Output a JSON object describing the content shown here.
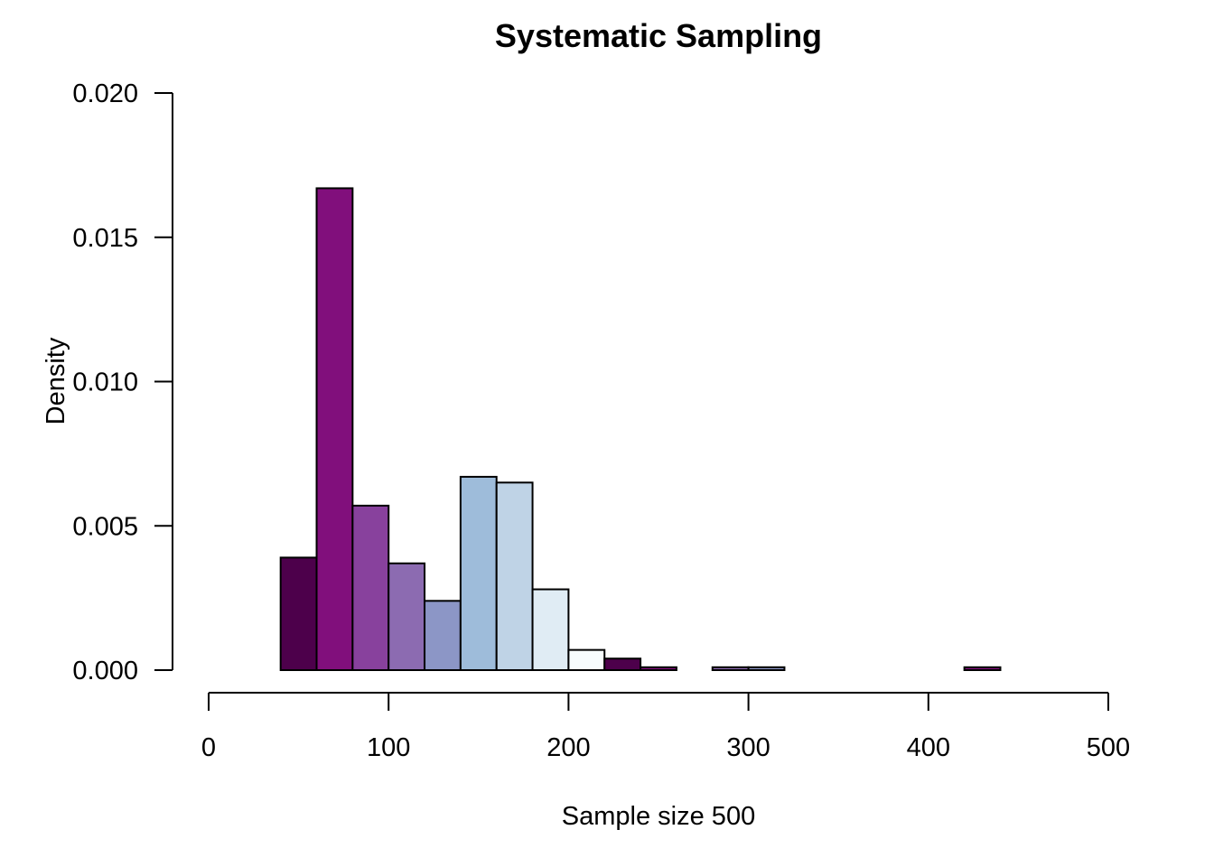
{
  "chart_data": {
    "type": "bar",
    "title": "Systematic Sampling",
    "xlabel": "Sample size 500",
    "ylabel": "Density",
    "xlim": [
      0,
      500
    ],
    "ylim": [
      0,
      0.02
    ],
    "x_ticks": [
      "0",
      "100",
      "200",
      "300",
      "400",
      "500"
    ],
    "x_tick_values": [
      0,
      100,
      200,
      300,
      400,
      500
    ],
    "y_ticks": [
      "0.000",
      "0.005",
      "0.010",
      "0.015",
      "0.020"
    ],
    "y_tick_values": [
      0,
      0.005,
      0.01,
      0.015,
      0.02
    ],
    "grid": false,
    "bins": [
      {
        "x0": 40,
        "x1": 60,
        "value": 0.0039,
        "color": "#4d004b"
      },
      {
        "x0": 60,
        "x1": 80,
        "value": 0.0167,
        "color": "#810f7c"
      },
      {
        "x0": 80,
        "x1": 100,
        "value": 0.0057,
        "color": "#88419d"
      },
      {
        "x0": 100,
        "x1": 120,
        "value": 0.0037,
        "color": "#8c6bb1"
      },
      {
        "x0": 120,
        "x1": 140,
        "value": 0.0024,
        "color": "#8c96c6"
      },
      {
        "x0": 140,
        "x1": 160,
        "value": 0.0067,
        "color": "#9ebcda"
      },
      {
        "x0": 160,
        "x1": 180,
        "value": 0.0065,
        "color": "#bfd3e6"
      },
      {
        "x0": 180,
        "x1": 200,
        "value": 0.0028,
        "color": "#e0ecf4"
      },
      {
        "x0": 200,
        "x1": 220,
        "value": 0.0007,
        "color": "#f7fcfd"
      },
      {
        "x0": 220,
        "x1": 240,
        "value": 0.0004,
        "color": "#4d004b"
      },
      {
        "x0": 240,
        "x1": 260,
        "value": 0.0001,
        "color": "#810f7c"
      },
      {
        "x0": 260,
        "x1": 280,
        "value": 0.0,
        "color": "#88419d"
      },
      {
        "x0": 280,
        "x1": 300,
        "value": 0.0001,
        "color": "#8c6bb1"
      },
      {
        "x0": 300,
        "x1": 320,
        "value": 0.0001,
        "color": "#8c96c6"
      },
      {
        "x0": 320,
        "x1": 340,
        "value": 0.0,
        "color": "#9ebcda"
      },
      {
        "x0": 340,
        "x1": 360,
        "value": 0.0,
        "color": "#bfd3e6"
      },
      {
        "x0": 360,
        "x1": 380,
        "value": 0.0,
        "color": "#e0ecf4"
      },
      {
        "x0": 380,
        "x1": 400,
        "value": 0.0,
        "color": "#f7fcfd"
      },
      {
        "x0": 400,
        "x1": 420,
        "value": 0.0,
        "color": "#4d004b"
      },
      {
        "x0": 420,
        "x1": 440,
        "value": 0.0001,
        "color": "#810f7c"
      }
    ]
  }
}
